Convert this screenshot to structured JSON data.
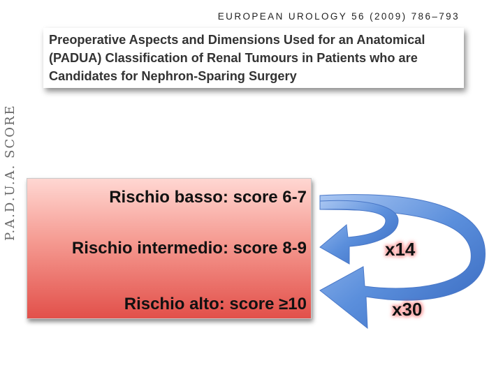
{
  "journal": "EUROPEAN UROLOGY 56 (2009) 786–793",
  "title_lines": [
    "Preoperative Aspects and Dimensions Used for an Anatomical",
    "(PADUA) Classification of Renal Tumours in Patients who are",
    "Candidates for Nephron-Sparing Surgery"
  ],
  "side_label": "P.A.D.U.A. SCORE",
  "risks": [
    "Rischio basso: score 6-7",
    "Rischio intermedio: score 8-9",
    "Rischio alto: score ≥10"
  ],
  "multipliers": [
    "x14",
    "x30"
  ],
  "colors": {
    "box_top": "#ffd7d2",
    "box_bottom": "#e2504a",
    "arrow": "#5b8fdc",
    "glow": "#ff3b3b"
  }
}
